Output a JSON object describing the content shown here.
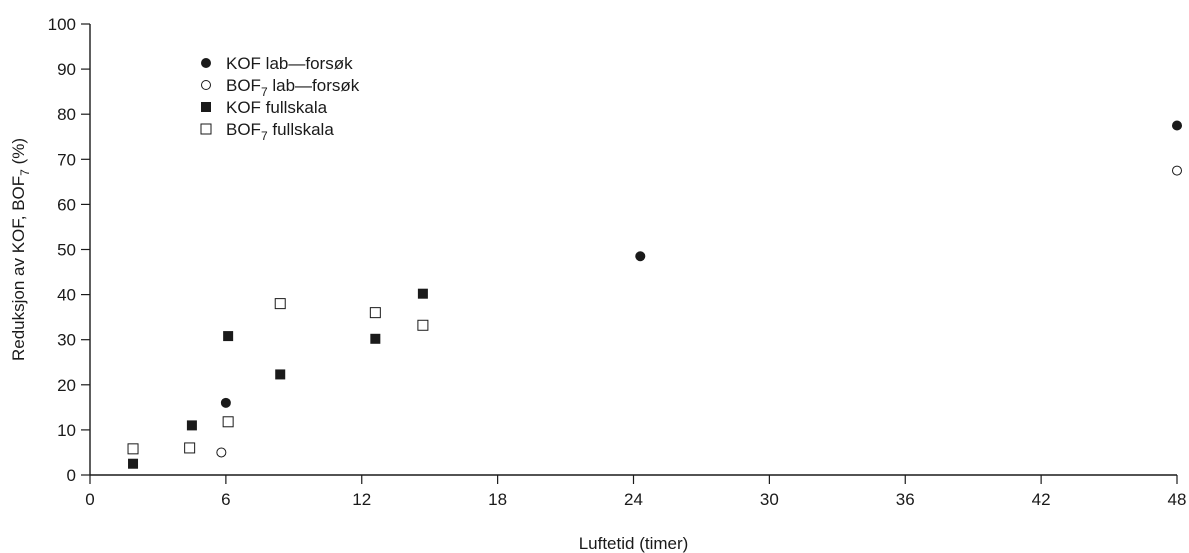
{
  "chart_data": {
    "type": "scatter",
    "title": "",
    "xlabel": "Luftetid (timer)",
    "ylabel_parts": [
      "Reduksjon av KOF, BOF",
      "7",
      " (%)"
    ],
    "xlim": [
      0,
      48
    ],
    "ylim": [
      0,
      100
    ],
    "xticks": [
      0,
      6,
      12,
      18,
      24,
      30,
      36,
      42,
      48
    ],
    "yticks": [
      0,
      10,
      20,
      30,
      40,
      50,
      60,
      70,
      80,
      90,
      100
    ],
    "grid": false,
    "legend_position": "top-left",
    "series": [
      {
        "name": "KOF lab—forsøk",
        "name_main": "KOF lab—forsøk",
        "name_sub": "",
        "name_tail": "",
        "marker": "filled-circle",
        "points": [
          [
            6.0,
            16.0
          ],
          [
            24.3,
            48.5
          ],
          [
            48.0,
            77.5
          ]
        ]
      },
      {
        "name": "BOF7 lab—forsøk",
        "name_main": "BOF",
        "name_sub": "7",
        "name_tail": " lab—forsøk",
        "marker": "open-circle",
        "points": [
          [
            5.8,
            5.0
          ],
          [
            48.0,
            67.5
          ]
        ]
      },
      {
        "name": "KOF fullskala",
        "name_main": "KOF fullskala",
        "name_sub": "",
        "name_tail": "",
        "marker": "filled-square",
        "points": [
          [
            1.9,
            2.5
          ],
          [
            4.5,
            11.0
          ],
          [
            6.1,
            30.8
          ],
          [
            8.4,
            22.3
          ],
          [
            12.6,
            30.2
          ],
          [
            14.7,
            40.2
          ]
        ]
      },
      {
        "name": "BOF7 fullskala",
        "name_main": "BOF",
        "name_sub": "7",
        "name_tail": " fullskala",
        "marker": "open-square",
        "points": [
          [
            1.9,
            5.8
          ],
          [
            4.4,
            6.0
          ],
          [
            6.1,
            11.8
          ],
          [
            8.4,
            38.0
          ],
          [
            12.6,
            36.0
          ],
          [
            14.7,
            33.2
          ]
        ]
      }
    ]
  }
}
